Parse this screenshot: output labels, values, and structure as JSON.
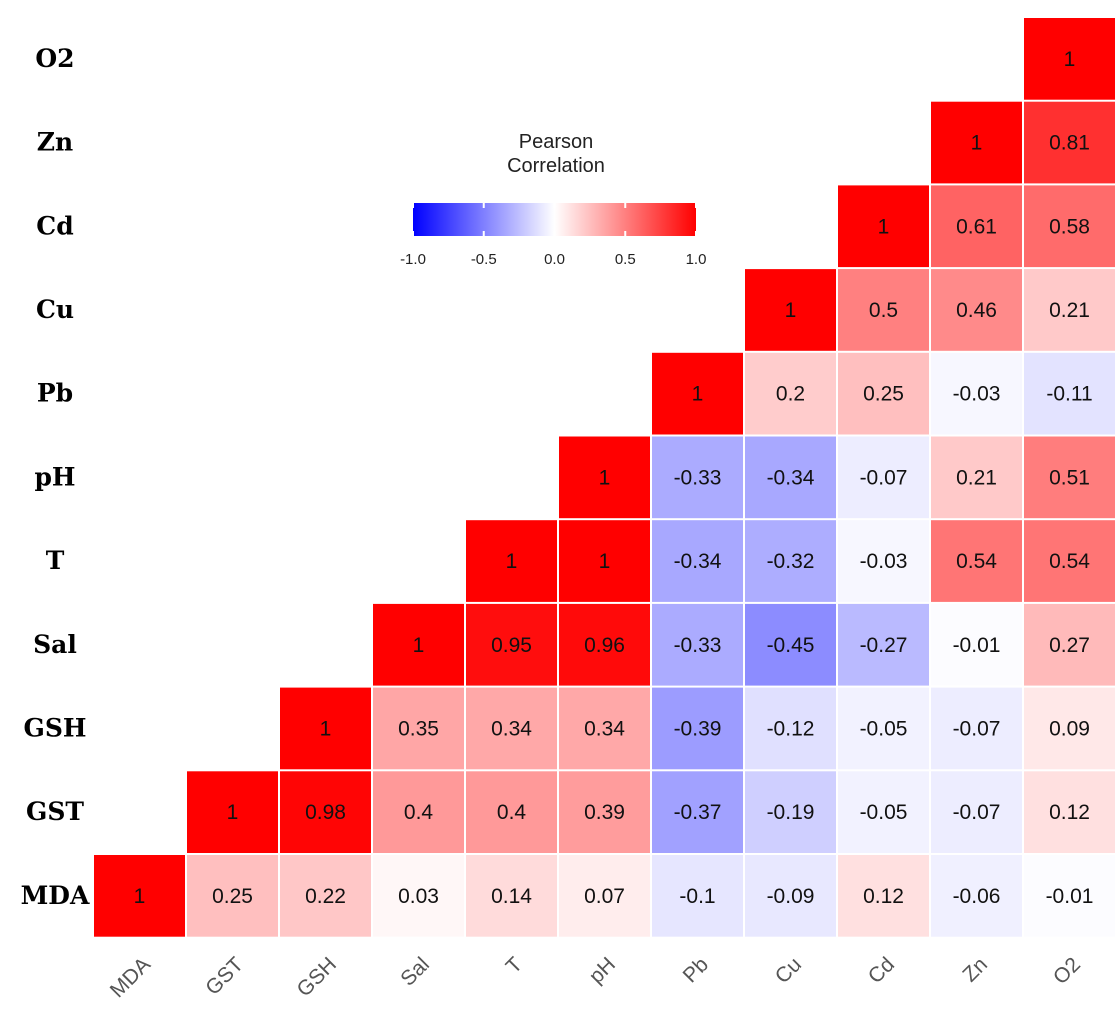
{
  "chart_data": {
    "type": "heatmap",
    "variables": [
      "MDA",
      "GST",
      "GSH",
      "Sal",
      "T",
      "pH",
      "Pb",
      "Cu",
      "Cd",
      "Zn",
      "O2"
    ],
    "x_labels": [
      "MDA",
      "GST",
      "GSH",
      "Sal",
      "T",
      "pH",
      "Pb",
      "Cu",
      "Cd",
      "Zn",
      "O2"
    ],
    "y_labels": [
      "MDA",
      "GST",
      "GSH",
      "Sal",
      "T",
      "pH",
      "Pb",
      "Cu",
      "Cd",
      "Zn",
      "O2"
    ],
    "cells": [
      {
        "row": "MDA",
        "col": "MDA",
        "value": 1,
        "label": "1"
      },
      {
        "row": "MDA",
        "col": "GST",
        "value": 0.25,
        "label": "0.25"
      },
      {
        "row": "MDA",
        "col": "GSH",
        "value": 0.22,
        "label": "0.22"
      },
      {
        "row": "MDA",
        "col": "Sal",
        "value": 0.03,
        "label": "0.03"
      },
      {
        "row": "MDA",
        "col": "T",
        "value": 0.14,
        "label": "0.14"
      },
      {
        "row": "MDA",
        "col": "pH",
        "value": 0.07,
        "label": "0.07"
      },
      {
        "row": "MDA",
        "col": "Pb",
        "value": -0.1,
        "label": "-0.1"
      },
      {
        "row": "MDA",
        "col": "Cu",
        "value": -0.09,
        "label": "-0.09"
      },
      {
        "row": "MDA",
        "col": "Cd",
        "value": 0.12,
        "label": "0.12"
      },
      {
        "row": "MDA",
        "col": "Zn",
        "value": -0.06,
        "label": "-0.06"
      },
      {
        "row": "MDA",
        "col": "O2",
        "value": -0.01,
        "label": "-0.01"
      },
      {
        "row": "GST",
        "col": "GST",
        "value": 1,
        "label": "1"
      },
      {
        "row": "GST",
        "col": "GSH",
        "value": 0.98,
        "label": "0.98"
      },
      {
        "row": "GST",
        "col": "Sal",
        "value": 0.4,
        "label": "0.4"
      },
      {
        "row": "GST",
        "col": "T",
        "value": 0.4,
        "label": "0.4"
      },
      {
        "row": "GST",
        "col": "pH",
        "value": 0.39,
        "label": "0.39"
      },
      {
        "row": "GST",
        "col": "Pb",
        "value": -0.37,
        "label": "-0.37"
      },
      {
        "row": "GST",
        "col": "Cu",
        "value": -0.19,
        "label": "-0.19"
      },
      {
        "row": "GST",
        "col": "Cd",
        "value": -0.05,
        "label": "-0.05"
      },
      {
        "row": "GST",
        "col": "Zn",
        "value": -0.07,
        "label": "-0.07"
      },
      {
        "row": "GST",
        "col": "O2",
        "value": 0.12,
        "label": "0.12"
      },
      {
        "row": "GSH",
        "col": "GSH",
        "value": 1,
        "label": "1"
      },
      {
        "row": "GSH",
        "col": "Sal",
        "value": 0.35,
        "label": "0.35"
      },
      {
        "row": "GSH",
        "col": "T",
        "value": 0.34,
        "label": "0.34"
      },
      {
        "row": "GSH",
        "col": "pH",
        "value": 0.34,
        "label": "0.34"
      },
      {
        "row": "GSH",
        "col": "Pb",
        "value": -0.39,
        "label": "-0.39"
      },
      {
        "row": "GSH",
        "col": "Cu",
        "value": -0.12,
        "label": "-0.12"
      },
      {
        "row": "GSH",
        "col": "Cd",
        "value": -0.05,
        "label": "-0.05"
      },
      {
        "row": "GSH",
        "col": "Zn",
        "value": -0.07,
        "label": "-0.07"
      },
      {
        "row": "GSH",
        "col": "O2",
        "value": 0.09,
        "label": "0.09"
      },
      {
        "row": "Sal",
        "col": "Sal",
        "value": 1,
        "label": "1"
      },
      {
        "row": "Sal",
        "col": "T",
        "value": 0.95,
        "label": "0.95"
      },
      {
        "row": "Sal",
        "col": "pH",
        "value": 0.96,
        "label": "0.96"
      },
      {
        "row": "Sal",
        "col": "Pb",
        "value": -0.33,
        "label": "-0.33"
      },
      {
        "row": "Sal",
        "col": "Cu",
        "value": -0.45,
        "label": "-0.45"
      },
      {
        "row": "Sal",
        "col": "Cd",
        "value": -0.27,
        "label": "-0.27"
      },
      {
        "row": "Sal",
        "col": "Zn",
        "value": -0.01,
        "label": "-0.01"
      },
      {
        "row": "Sal",
        "col": "O2",
        "value": 0.27,
        "label": "0.27"
      },
      {
        "row": "T",
        "col": "T",
        "value": 1,
        "label": "1"
      },
      {
        "row": "T",
        "col": "pH",
        "value": 1,
        "label": "1"
      },
      {
        "row": "T",
        "col": "Pb",
        "value": -0.34,
        "label": "-0.34"
      },
      {
        "row": "T",
        "col": "Cu",
        "value": -0.32,
        "label": "-0.32"
      },
      {
        "row": "T",
        "col": "Cd",
        "value": -0.03,
        "label": "-0.03"
      },
      {
        "row": "T",
        "col": "Zn",
        "value": 0.54,
        "label": "0.54"
      },
      {
        "row": "T",
        "col": "O2",
        "value": 0.54,
        "label": "0.54"
      },
      {
        "row": "pH",
        "col": "pH",
        "value": 1,
        "label": "1"
      },
      {
        "row": "pH",
        "col": "Pb",
        "value": -0.33,
        "label": "-0.33"
      },
      {
        "row": "pH",
        "col": "Cu",
        "value": -0.34,
        "label": "-0.34"
      },
      {
        "row": "pH",
        "col": "Cd",
        "value": -0.07,
        "label": "-0.07"
      },
      {
        "row": "pH",
        "col": "Zn",
        "value": 0.21,
        "label": "0.21"
      },
      {
        "row": "pH",
        "col": "O2",
        "value": 0.51,
        "label": "0.51"
      },
      {
        "row": "Pb",
        "col": "Pb",
        "value": 1,
        "label": "1"
      },
      {
        "row": "Pb",
        "col": "Cu",
        "value": 0.2,
        "label": "0.2"
      },
      {
        "row": "Pb",
        "col": "Cd",
        "value": 0.25,
        "label": "0.25"
      },
      {
        "row": "Pb",
        "col": "Zn",
        "value": -0.03,
        "label": "-0.03"
      },
      {
        "row": "Pb",
        "col": "O2",
        "value": -0.11,
        "label": "-0.11"
      },
      {
        "row": "Cu",
        "col": "Cu",
        "value": 1,
        "label": "1"
      },
      {
        "row": "Cu",
        "col": "Cd",
        "value": 0.5,
        "label": "0.5"
      },
      {
        "row": "Cu",
        "col": "Zn",
        "value": 0.46,
        "label": "0.46"
      },
      {
        "row": "Cu",
        "col": "O2",
        "value": 0.21,
        "label": "0.21"
      },
      {
        "row": "Cd",
        "col": "Cd",
        "value": 1,
        "label": "1"
      },
      {
        "row": "Cd",
        "col": "Zn",
        "value": 0.61,
        "label": "0.61"
      },
      {
        "row": "Cd",
        "col": "O2",
        "value": 0.58,
        "label": "0.58"
      },
      {
        "row": "Zn",
        "col": "Zn",
        "value": 1,
        "label": "1"
      },
      {
        "row": "Zn",
        "col": "O2",
        "value": 0.81,
        "label": "0.81"
      },
      {
        "row": "O2",
        "col": "O2",
        "value": 1,
        "label": "1"
      }
    ],
    "color_scale": {
      "min": -1.0,
      "mid": 0.0,
      "max": 1.0,
      "low_color": "#0000ff",
      "mid_color": "#ffffff",
      "high_color": "#ff0000"
    },
    "legend": {
      "title_lines": [
        "Pearson",
        "Correlation"
      ],
      "ticks": [
        "-1.0",
        "-0.5",
        "0.0",
        "0.5",
        "1.0"
      ],
      "tick_values": [
        -1.0,
        -0.5,
        0.0,
        0.5,
        1.0
      ],
      "placement": "top-left inside upper triangle"
    },
    "cell_border_color": "#ffffff",
    "grid": false
  }
}
